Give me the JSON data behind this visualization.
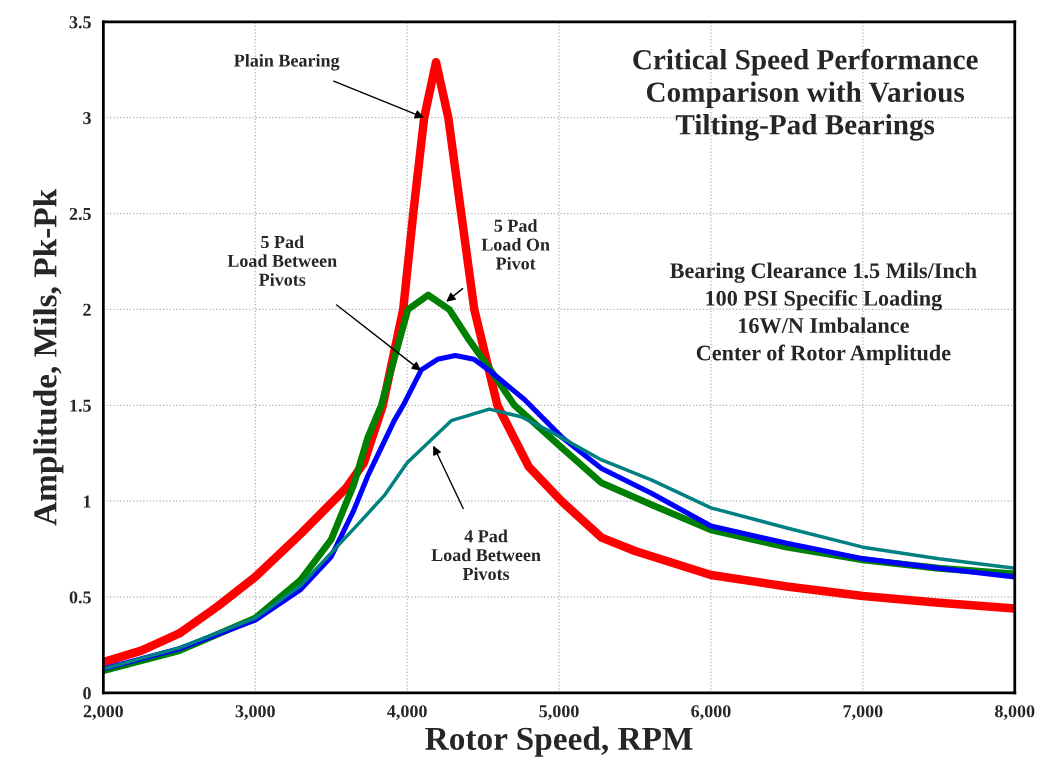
{
  "chart_data": {
    "type": "line",
    "title": "Critical Speed Performance\nComparison with Various\nTilting-Pad Bearings",
    "xlabel": "Rotor Speed, RPM",
    "ylabel": "Amplitude, Mils, Pk-Pk",
    "xlim": [
      2000,
      8000
    ],
    "ylim": [
      0,
      3.5
    ],
    "xticks": [
      {
        "value": 2000,
        "label": "2,000"
      },
      {
        "value": 3000,
        "label": "3,000"
      },
      {
        "value": 4000,
        "label": "4,000"
      },
      {
        "value": 5000,
        "label": "5,000"
      },
      {
        "value": 6000,
        "label": "6,000"
      },
      {
        "value": 7000,
        "label": "7,000"
      },
      {
        "value": 8000,
        "label": "8,000"
      }
    ],
    "yticks": [
      0,
      0.5,
      1,
      1.5,
      2,
      2.5,
      3,
      3.5
    ],
    "grid": true,
    "marker": "none",
    "line_style": "solid",
    "legend": false,
    "series": [
      {
        "color": "#ff0000",
        "x": [
          2000,
          2250,
          2500,
          2750,
          3000,
          3300,
          3600,
          3715,
          3840,
          3974,
          4040,
          4112,
          4190,
          4271,
          4356,
          4442,
          4594,
          4800,
          5016,
          5280,
          5500,
          6000,
          6500,
          7000,
          7500,
          8000
        ],
        "values": [
          0.16,
          0.22,
          0.31,
          0.45,
          0.605,
          0.83,
          1.07,
          1.2,
          1.5,
          2.0,
          2.5,
          3.0,
          3.29,
          3.0,
          2.5,
          2.0,
          1.5,
          1.18,
          1.0,
          0.81,
          0.74,
          0.615,
          0.555,
          0.505,
          0.47,
          0.44
        ]
      },
      {
        "color": "#008000",
        "x": [
          2000,
          2500,
          3000,
          3300,
          3500,
          3650,
          3740,
          3830,
          4005,
          4139,
          4277,
          4400,
          4535,
          4706,
          5016,
          5280,
          5611,
          6000,
          6500,
          7000,
          7500,
          8000
        ],
        "values": [
          0.115,
          0.22,
          0.39,
          0.59,
          0.8,
          1.09,
          1.33,
          1.5,
          2.0,
          2.075,
          2.0,
          1.85,
          1.7,
          1.5,
          1.28,
          1.095,
          0.98,
          0.85,
          0.76,
          0.694,
          0.65,
          0.62
        ]
      },
      {
        "color": "#0000ff",
        "x": [
          2000,
          2500,
          3000,
          3300,
          3500,
          3650,
          3740,
          3915,
          3974,
          4093,
          4200,
          4317,
          4440,
          4535,
          4772,
          5016,
          5280,
          5611,
          6000,
          6500,
          7000,
          7500,
          8000
        ],
        "values": [
          0.125,
          0.23,
          0.38,
          0.54,
          0.71,
          0.955,
          1.13,
          1.42,
          1.5,
          1.685,
          1.74,
          1.76,
          1.74,
          1.685,
          1.53,
          1.335,
          1.17,
          1.04,
          0.87,
          0.78,
          0.7,
          0.65,
          0.605
        ]
      },
      {
        "color": "#008080",
        "x": [
          2000,
          2500,
          3000,
          3300,
          3500,
          3700,
          3850,
          4000,
          4290,
          4541,
          4750,
          4950,
          5280,
          5611,
          6000,
          6500,
          7000,
          7500,
          8000
        ],
        "values": [
          0.125,
          0.235,
          0.39,
          0.56,
          0.73,
          0.9,
          1.03,
          1.2,
          1.42,
          1.48,
          1.44,
          1.36,
          1.215,
          1.11,
          0.965,
          0.86,
          0.76,
          0.7,
          0.65
        ]
      }
    ],
    "annotations": [
      {
        "text": "Plain Bearing",
        "x": 4112,
        "y": 3.0
      },
      {
        "text": "5 Pad\nLoad On\nPivot",
        "x": 4257,
        "y": 2.04
      },
      {
        "text": "5 Pad\nLoad Between\nPivots",
        "x": 4092,
        "y": 1.68
      },
      {
        "text": "4 Pad\nLoad Between\nPivots",
        "x": 4172,
        "y": 1.29
      },
      "Bearing Clearance 1.5 Mils/Inch\n100 PSI Specific Loading\n16W/N Imbalance\nCenter of Rotor Amplitude"
    ]
  }
}
